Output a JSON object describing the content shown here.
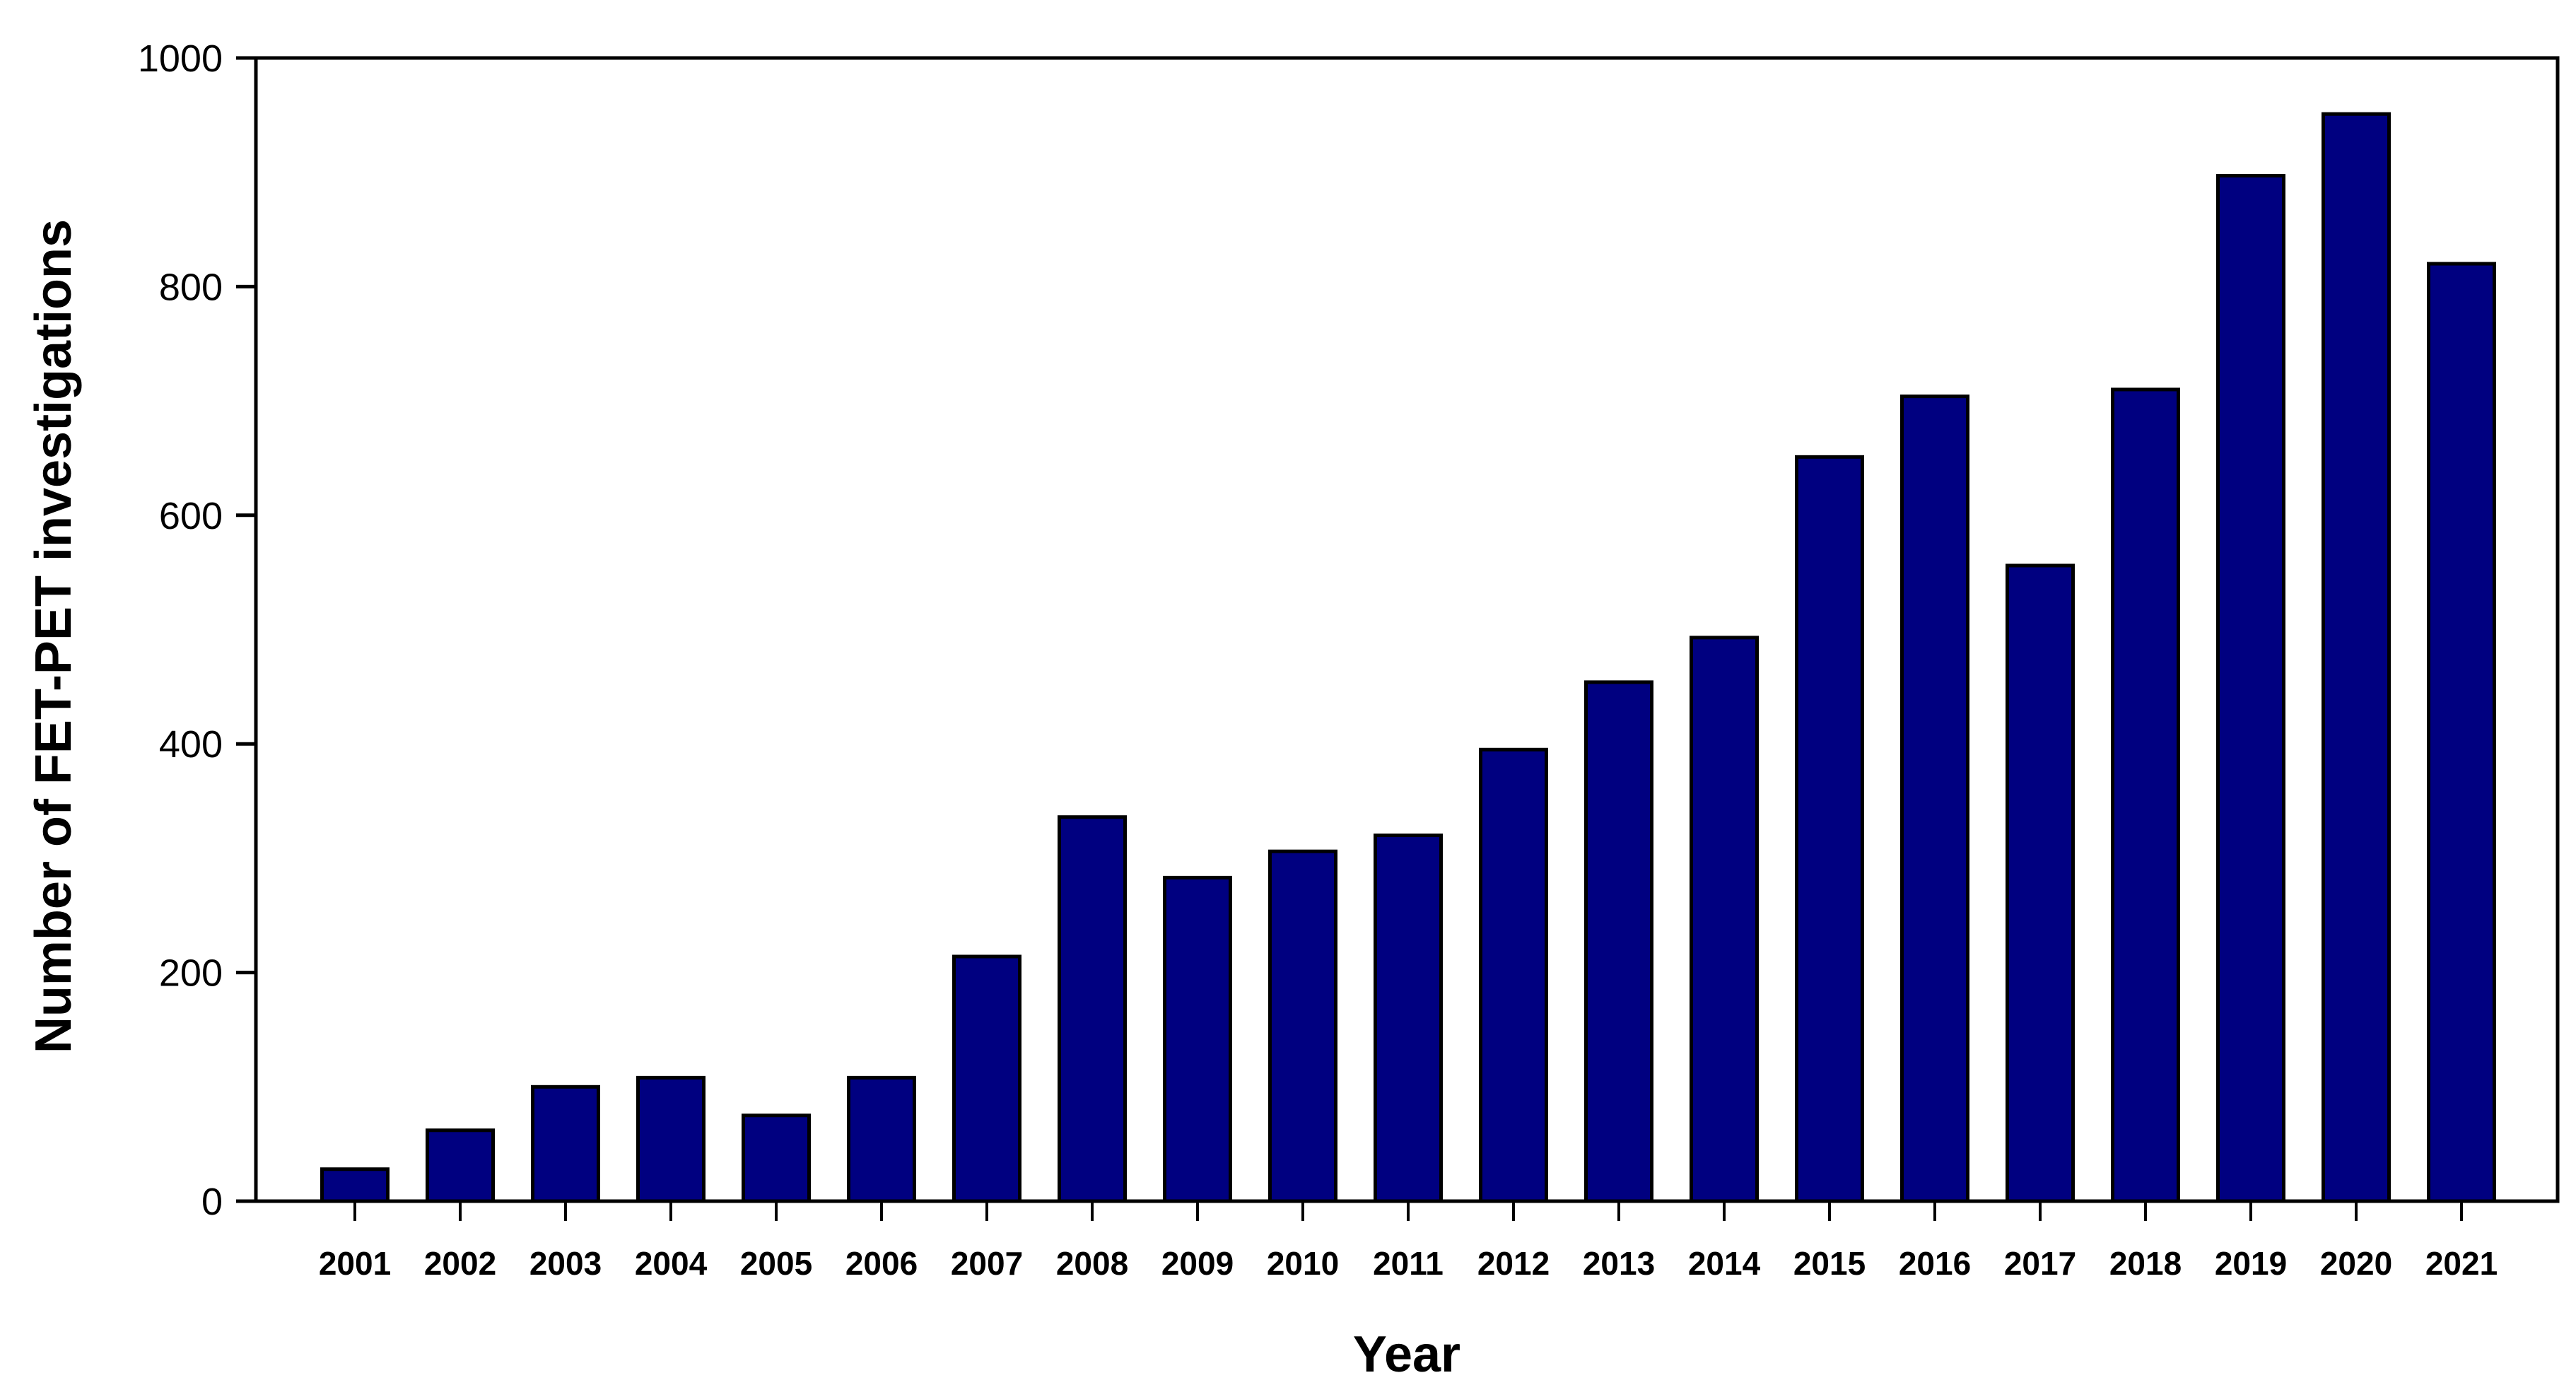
{
  "chart_data": {
    "type": "bar",
    "title": "",
    "xlabel": "Year",
    "ylabel": "Number of FET-PET investigations",
    "ylim": [
      0,
      1000
    ],
    "yticks": [
      "0",
      "200",
      "400",
      "600",
      "800",
      "1000"
    ],
    "grid": false,
    "categories": [
      "2001",
      "2002",
      "2003",
      "2004",
      "2005",
      "2006",
      "2007",
      "2008",
      "2009",
      "2010",
      "2011",
      "2012",
      "2013",
      "2014",
      "2015",
      "2016",
      "2017",
      "2018",
      "2019",
      "2020",
      "2021"
    ],
    "values": [
      28,
      62,
      100,
      108,
      75,
      108,
      214,
      336,
      283,
      306,
      320,
      395,
      454,
      493,
      651,
      704,
      556,
      710,
      897,
      951,
      820
    ],
    "bar_color": "#000080",
    "edge_color": "#000000"
  }
}
